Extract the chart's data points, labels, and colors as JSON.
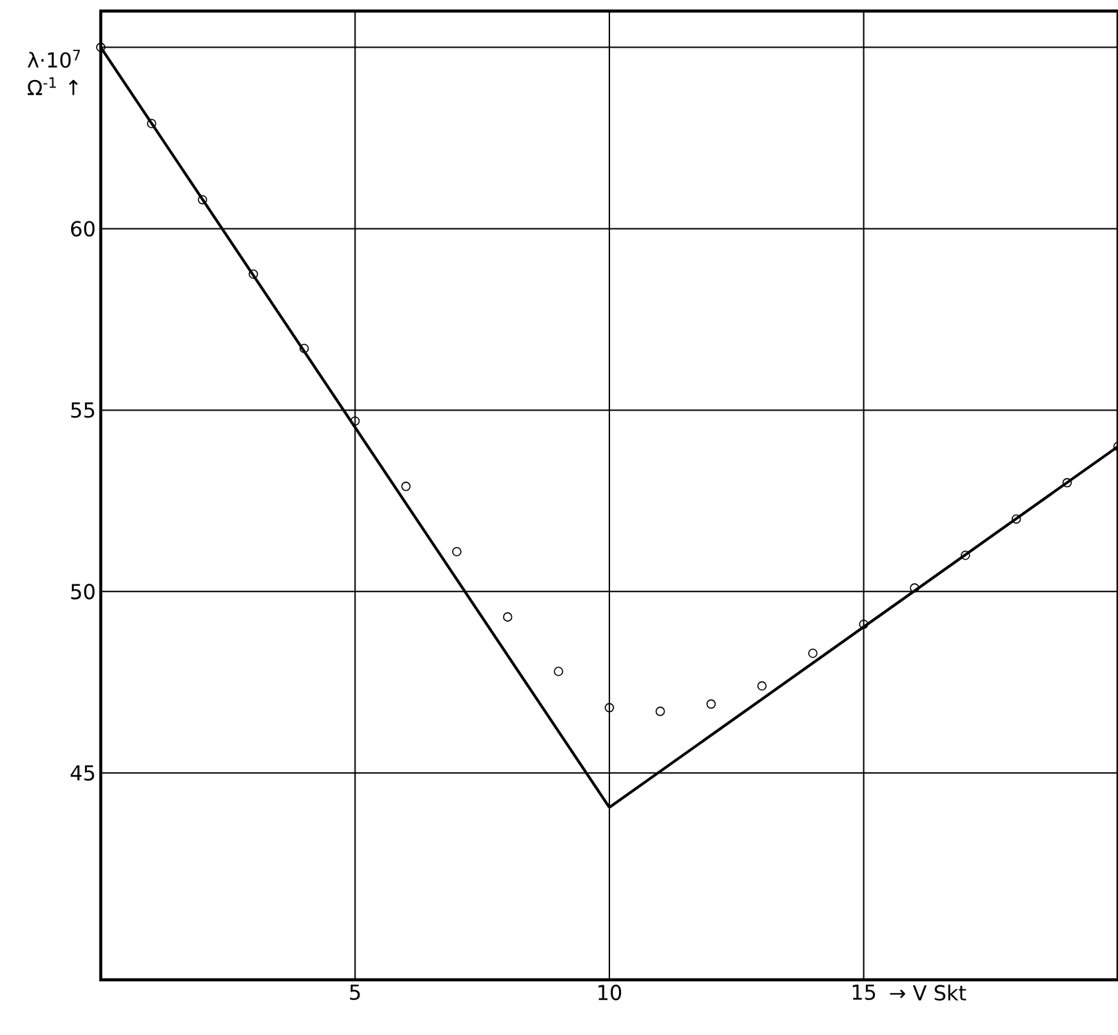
{
  "chart_data": {
    "type": "scatter",
    "xlabel": "→ V Skt",
    "ylabel": "λ·10$^{7}$ Ω$^{-1}$ ↑",
    "xlim": [
      0,
      20
    ],
    "ylim": [
      39.3,
      66
    ],
    "xticks": [
      5,
      10,
      15
    ],
    "yticks": [
      45,
      50,
      55,
      60,
      {
        "value": 65,
        "label": null
      }
    ],
    "grid": true,
    "line_style": "solid",
    "series": [
      {
        "color": "#000000",
        "marker": "circle",
        "x": [
          0,
          1,
          2,
          3,
          4,
          5,
          6,
          7,
          8,
          9,
          10,
          11,
          12,
          13,
          14,
          15,
          16,
          17,
          18,
          19,
          20
        ],
        "values": [
          65.0,
          62.9,
          60.8,
          58.75,
          56.7,
          54.7,
          52.9,
          51.1,
          49.3,
          47.8,
          46.8,
          46.7,
          46.9,
          47.4,
          48.3,
          49.1,
          50.1,
          51.0,
          52.0,
          53.0,
          54.0
        ]
      },
      {
        "type": "line",
        "color": "#000000",
        "marker": "none",
        "x": [
          0,
          10
        ],
        "values": [
          65.0,
          44.05
        ]
      },
      {
        "type": "line",
        "color": "#000000",
        "marker": "none",
        "x": [
          10,
          20
        ],
        "values": [
          44.05,
          54.0
        ]
      }
    ]
  }
}
